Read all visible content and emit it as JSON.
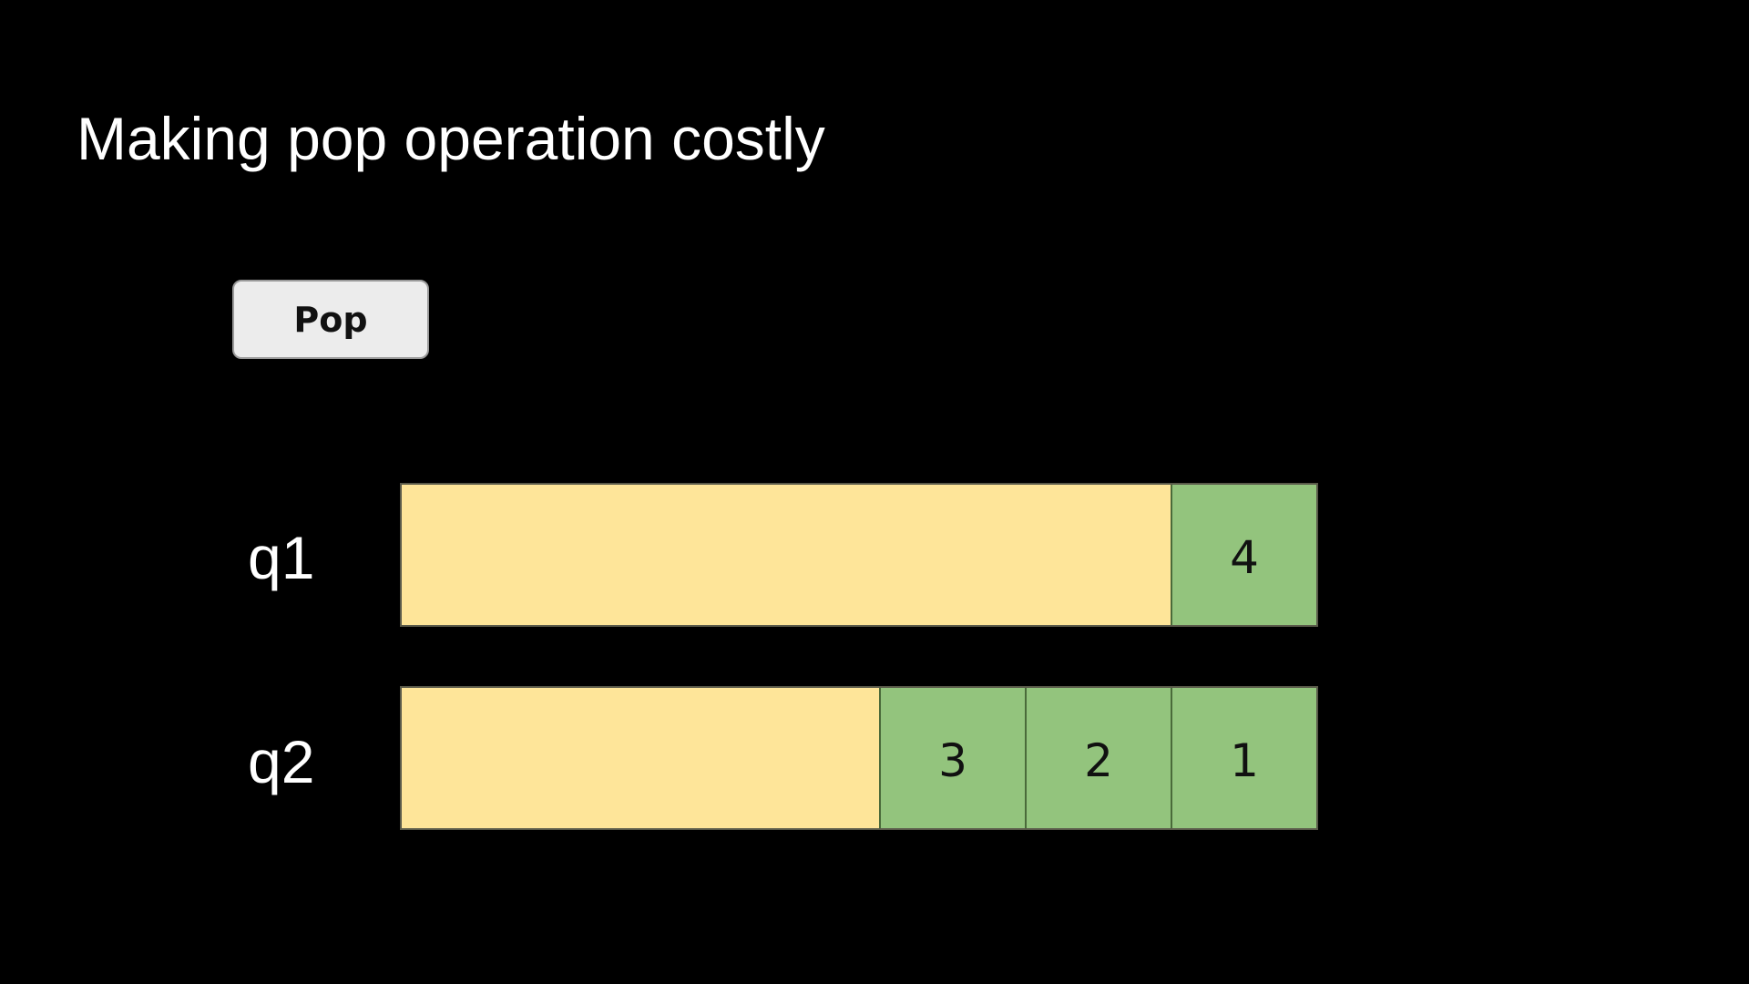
{
  "title": "Making pop operation costly",
  "pop_button": {
    "label": "Pop"
  },
  "colors": {
    "background": "#000000",
    "empty_slot": "#fee599",
    "filled_slot": "#93c47d",
    "button": "#ececec"
  },
  "queues": [
    {
      "label": "q1",
      "items": [
        "4"
      ]
    },
    {
      "label": "q2",
      "items": [
        "3",
        "2",
        "1"
      ]
    }
  ]
}
